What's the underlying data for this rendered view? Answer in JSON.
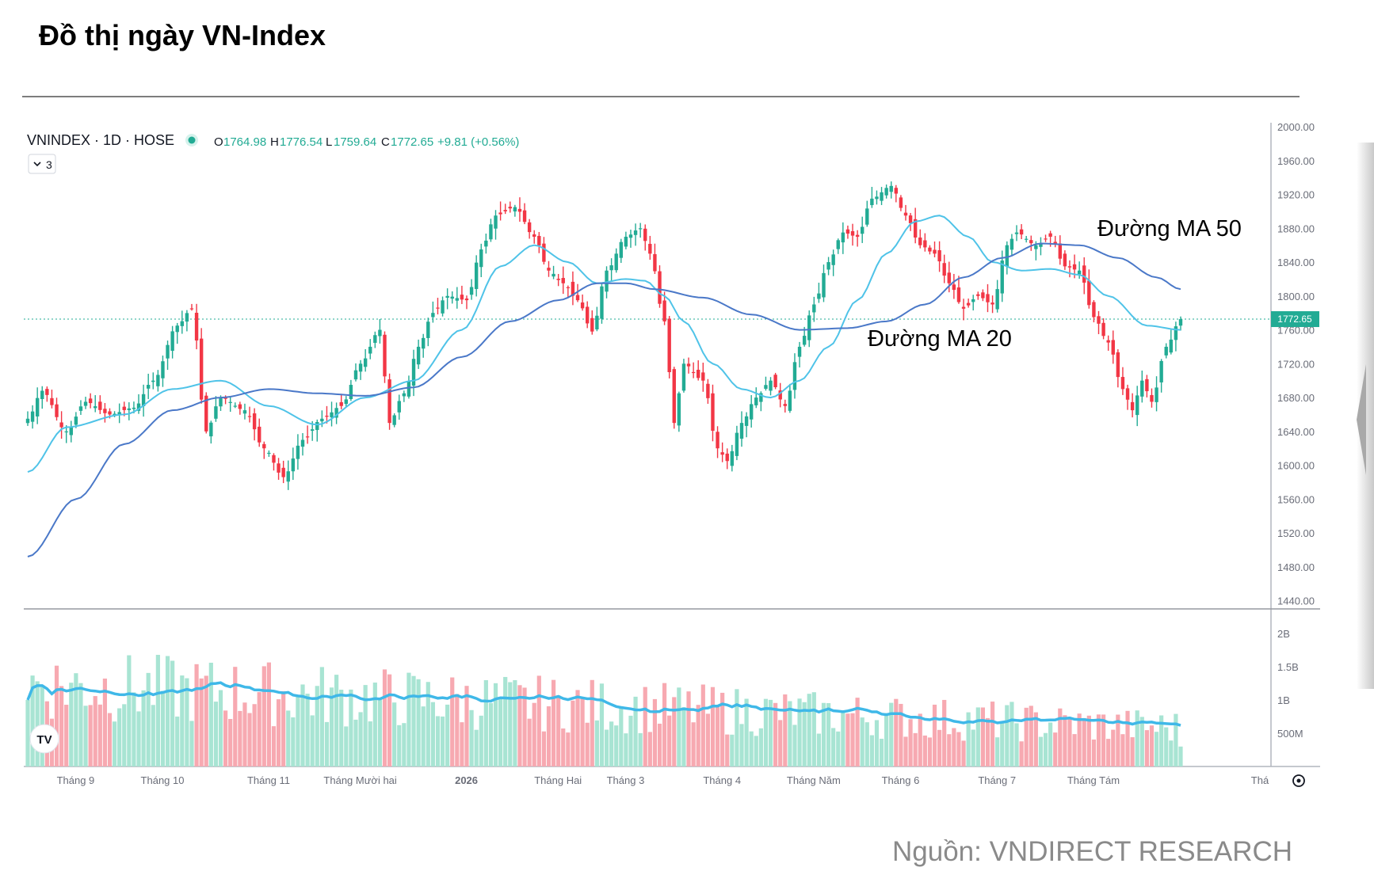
{
  "page": {
    "title": "Đồ thị ngày VN-Index",
    "source": "Nguồn: VNDIRECT RESEARCH"
  },
  "legend": {
    "symbol": "VNINDEX · 1D · HOSE",
    "o_label": "O",
    "o_value": "1764.98",
    "h_label": "H",
    "h_value": "1776.54",
    "l_label": "L",
    "l_value": "1759.64",
    "c_label": "C",
    "c_value": "1772.65",
    "change": "+9.81 (+0.56%)",
    "indicator_toggle": "3",
    "up_color": "#22ab94"
  },
  "annotations": {
    "ma50": "Đường MA 50",
    "ma20": "Đường MA 20"
  },
  "chart_data": {
    "type": "candlestick",
    "price_axis": {
      "ylim": [
        1420,
        2000
      ],
      "ticks": [
        "2000.00",
        "1960.00",
        "1920.00",
        "1880.00",
        "1840.00",
        "1800.00",
        "1760.00",
        "1720.00",
        "1680.00",
        "1640.00",
        "1600.00",
        "1560.00",
        "1520.00",
        "1480.00",
        "1440.00"
      ],
      "last_price_label": "1772.65",
      "last_price": 1772.65
    },
    "volume_axis": {
      "ylim": [
        0,
        2300000000
      ],
      "ticks": [
        "2B",
        "1.5B",
        "1B",
        "500M"
      ]
    },
    "x_labels": [
      "Tháng 9",
      "Tháng 10",
      "Tháng 11",
      "Tháng Mười hai",
      "2026",
      "Tháng Hai",
      "Tháng 3",
      "Tháng 4",
      "Tháng Năm",
      "Tháng 6",
      "Tháng 7",
      "Tháng Tám",
      "Thá"
    ],
    "close_anchors": [
      [
        0,
        1655
      ],
      [
        3,
        1688
      ],
      [
        8,
        1640
      ],
      [
        12,
        1675
      ],
      [
        17,
        1660
      ],
      [
        22,
        1668
      ],
      [
        26,
        1700
      ],
      [
        31,
        1765
      ],
      [
        34,
        1785
      ],
      [
        37,
        1640
      ],
      [
        40,
        1680
      ],
      [
        45,
        1665
      ],
      [
        49,
        1620
      ],
      [
        53,
        1586
      ],
      [
        57,
        1630
      ],
      [
        61,
        1655
      ],
      [
        65,
        1670
      ],
      [
        69,
        1720
      ],
      [
        73,
        1760
      ],
      [
        75,
        1650
      ],
      [
        78,
        1685
      ],
      [
        81,
        1740
      ],
      [
        84,
        1780
      ],
      [
        87,
        1800
      ],
      [
        91,
        1795
      ],
      [
        94,
        1855
      ],
      [
        97,
        1895
      ],
      [
        101,
        1905
      ],
      [
        105,
        1870
      ],
      [
        108,
        1830
      ],
      [
        111,
        1815
      ],
      [
        114,
        1795
      ],
      [
        117,
        1758
      ],
      [
        120,
        1830
      ],
      [
        124,
        1870
      ],
      [
        127,
        1880
      ],
      [
        129,
        1850
      ],
      [
        132,
        1770
      ],
      [
        134,
        1650
      ],
      [
        136,
        1720
      ],
      [
        140,
        1700
      ],
      [
        143,
        1620
      ],
      [
        145,
        1605
      ],
      [
        148,
        1650
      ],
      [
        151,
        1680
      ],
      [
        154,
        1700
      ],
      [
        157,
        1670
      ],
      [
        160,
        1740
      ],
      [
        163,
        1790
      ],
      [
        166,
        1840
      ],
      [
        169,
        1875
      ],
      [
        172,
        1870
      ],
      [
        175,
        1915
      ],
      [
        179,
        1930
      ],
      [
        182,
        1895
      ],
      [
        185,
        1860
      ],
      [
        188,
        1850
      ],
      [
        191,
        1815
      ],
      [
        194,
        1785
      ],
      [
        197,
        1800
      ],
      [
        200,
        1790
      ],
      [
        203,
        1860
      ],
      [
        205,
        1875
      ],
      [
        209,
        1860
      ],
      [
        212,
        1870
      ],
      [
        215,
        1835
      ],
      [
        218,
        1830
      ],
      [
        221,
        1775
      ],
      [
        224,
        1745
      ],
      [
        227,
        1690
      ],
      [
        229,
        1665
      ],
      [
        231,
        1700
      ],
      [
        233,
        1675
      ],
      [
        236,
        1740
      ],
      [
        239,
        1772.65
      ]
    ],
    "ma20_anchors": [
      [
        0,
        1592
      ],
      [
        8,
        1645
      ],
      [
        20,
        1660
      ],
      [
        30,
        1690
      ],
      [
        40,
        1700
      ],
      [
        50,
        1670
      ],
      [
        60,
        1648
      ],
      [
        70,
        1680
      ],
      [
        80,
        1700
      ],
      [
        90,
        1760
      ],
      [
        98,
        1835
      ],
      [
        105,
        1860
      ],
      [
        112,
        1840
      ],
      [
        118,
        1815
      ],
      [
        124,
        1820
      ],
      [
        128,
        1818
      ],
      [
        132,
        1800
      ],
      [
        136,
        1770
      ],
      [
        142,
        1720
      ],
      [
        148,
        1690
      ],
      [
        154,
        1680
      ],
      [
        160,
        1700
      ],
      [
        166,
        1740
      ],
      [
        172,
        1795
      ],
      [
        178,
        1850
      ],
      [
        184,
        1888
      ],
      [
        189,
        1895
      ],
      [
        195,
        1870
      ],
      [
        200,
        1840
      ],
      [
        206,
        1830
      ],
      [
        212,
        1832
      ],
      [
        218,
        1825
      ],
      [
        224,
        1800
      ],
      [
        232,
        1765
      ],
      [
        239,
        1760
      ]
    ],
    "ma50_anchors": [
      [
        0,
        1492
      ],
      [
        10,
        1560
      ],
      [
        20,
        1625
      ],
      [
        30,
        1665
      ],
      [
        40,
        1680
      ],
      [
        50,
        1690
      ],
      [
        60,
        1685
      ],
      [
        70,
        1682
      ],
      [
        80,
        1692
      ],
      [
        90,
        1728
      ],
      [
        100,
        1770
      ],
      [
        110,
        1795
      ],
      [
        118,
        1815
      ],
      [
        124,
        1815
      ],
      [
        130,
        1808
      ],
      [
        140,
        1798
      ],
      [
        150,
        1778
      ],
      [
        160,
        1760
      ],
      [
        170,
        1762
      ],
      [
        178,
        1770
      ],
      [
        186,
        1790
      ],
      [
        194,
        1822
      ],
      [
        202,
        1845
      ],
      [
        210,
        1862
      ],
      [
        218,
        1860
      ],
      [
        226,
        1845
      ],
      [
        234,
        1822
      ],
      [
        239,
        1808
      ]
    ],
    "volume_spec": {
      "values_in": "units",
      "note_levels": "daily volume approx 600M–1.6B"
    }
  }
}
